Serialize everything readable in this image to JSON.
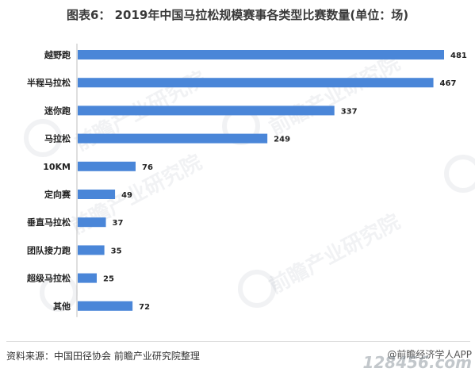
{
  "header": {
    "title": "图表6： 2019年中国马拉松规模赛事各类型比赛数量(单位：场)"
  },
  "chart_data": {
    "type": "bar",
    "orientation": "horizontal",
    "title": "图表6： 2019年中国马拉松规模赛事各类型比赛数量(单位：场)",
    "categories": [
      "越野跑",
      "半程马拉松",
      "迷你跑",
      "马拉松",
      "10KM",
      "定向赛",
      "垂直马拉松",
      "团队接力跑",
      "超级马拉松",
      "其他"
    ],
    "values": [
      481,
      467,
      337,
      249,
      76,
      49,
      37,
      35,
      25,
      72
    ],
    "xlim": [
      0,
      481
    ],
    "grid": false,
    "data_labels": true,
    "bar_color": "#4a86d8"
  },
  "footer": {
    "source": "资料来源：中国田径协会 前瞻产业研究院整理",
    "brand": "@前瞻经济学人APP"
  },
  "watermarks": {
    "text": "前瞻产业研究院",
    "site": "128456.com"
  }
}
